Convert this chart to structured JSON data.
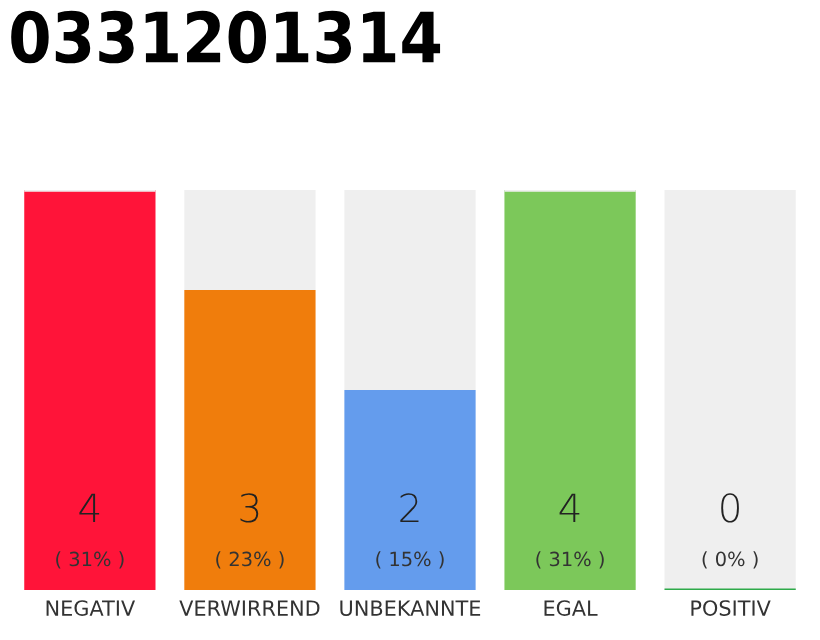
{
  "chart_data": {
    "type": "bar",
    "title": "0331201314",
    "categories": [
      "NEGATIV",
      "VERWIRREND",
      "UNBEKANNTE",
      "EGAL",
      "POSITIV"
    ],
    "stacked": true,
    "series": [
      {
        "colors": [
          "#ff1439",
          "#f07d0c",
          "#649ced",
          "#7cc85a",
          "#2eaa4a"
        ],
        "values": [
          4,
          3,
          2,
          4,
          0
        ],
        "value_labels": [
          "4\n( 31% )",
          "3\n( 23% )",
          "2\n( 15% )",
          "4\n( 31% )",
          "0\n( 0% )"
        ]
      },
      {
        "color": "#efefef",
        "values": [
          0,
          1,
          2,
          0,
          4
        ]
      }
    ],
    "ylim": [
      0,
      4
    ],
    "tick_labels": "x"
  }
}
